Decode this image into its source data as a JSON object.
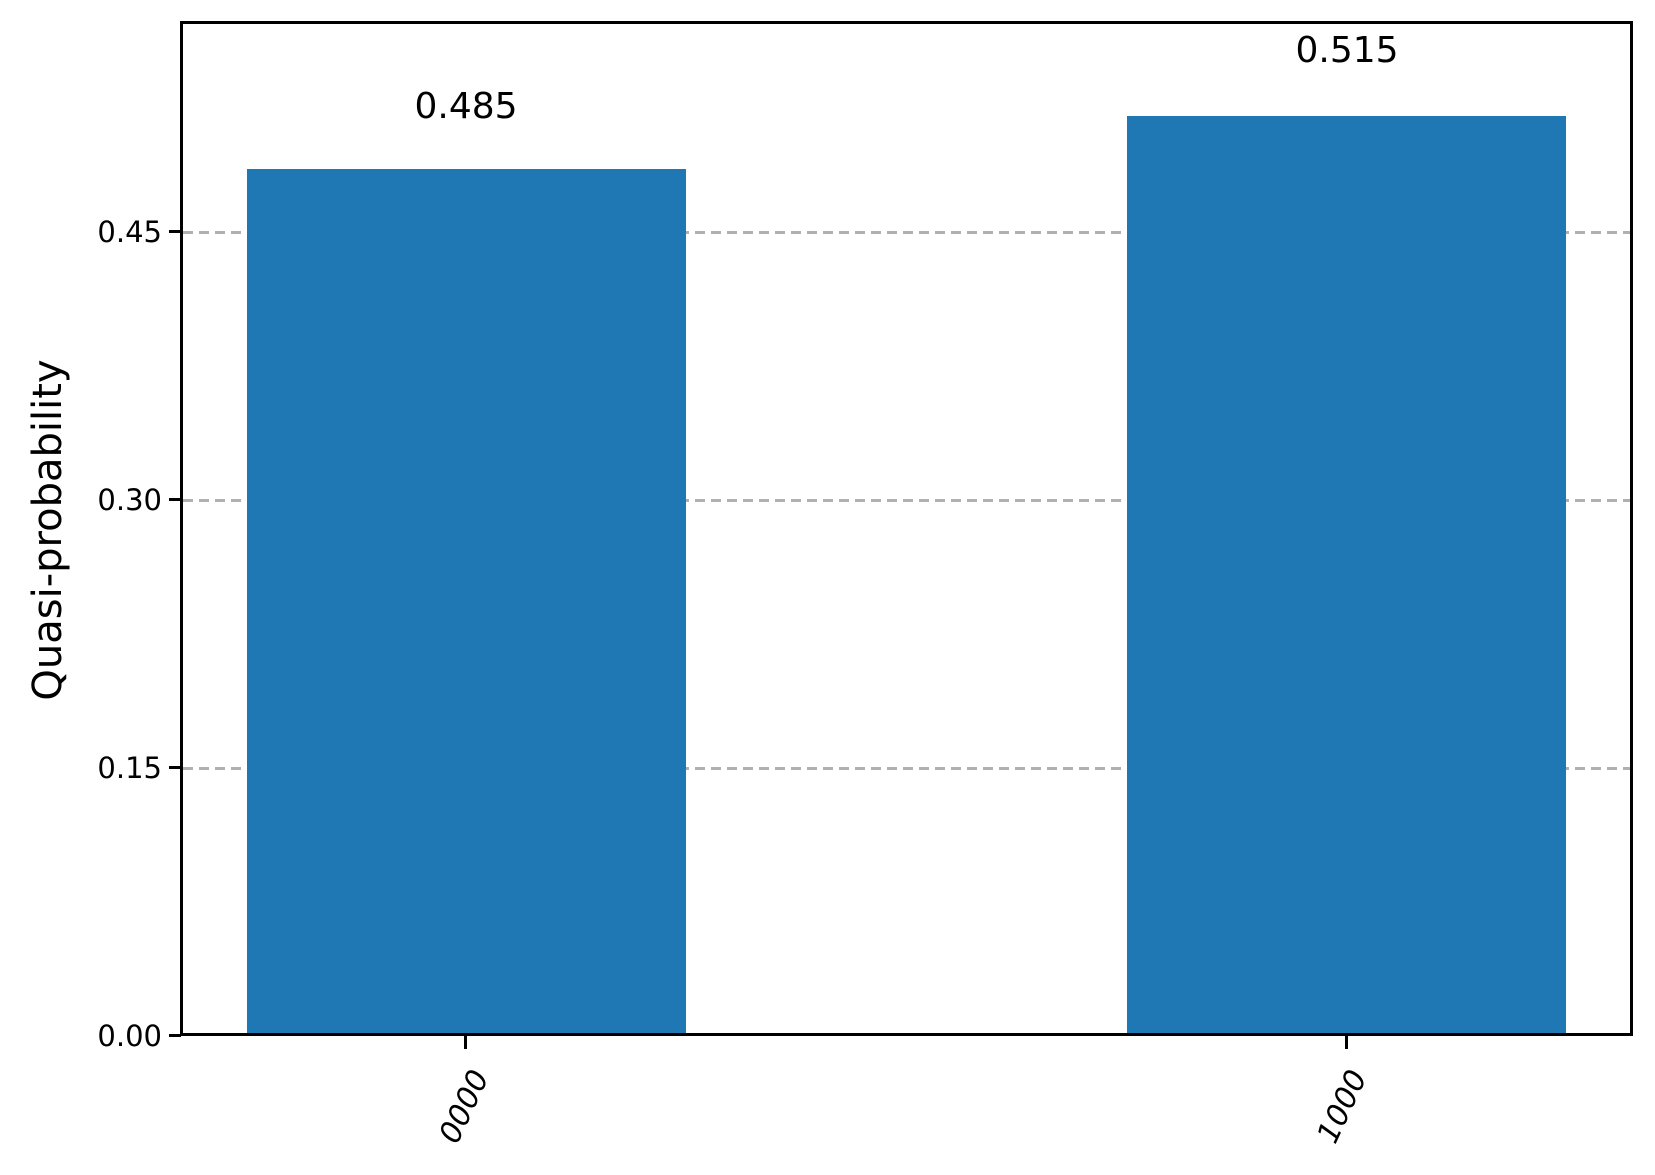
{
  "chart_data": {
    "type": "bar",
    "title": "",
    "xlabel": "",
    "ylabel": "Quasi-probability",
    "categories": [
      "0000",
      "1000"
    ],
    "values": [
      0.485,
      0.515
    ],
    "value_labels": [
      "0.485",
      "0.515"
    ],
    "yticks": [
      0.0,
      0.15,
      0.3,
      0.45
    ],
    "ytick_labels": [
      "0.00",
      "0.15",
      "0.30",
      "0.45"
    ],
    "ylim": [
      0,
      0.567
    ],
    "grid": "horizontal dashed lines at yticks, drawn behind bars",
    "legend_position": "none",
    "bar_color": "#1f77b4",
    "grid_color": "#b0b0b0",
    "axis_color": "#000000"
  }
}
